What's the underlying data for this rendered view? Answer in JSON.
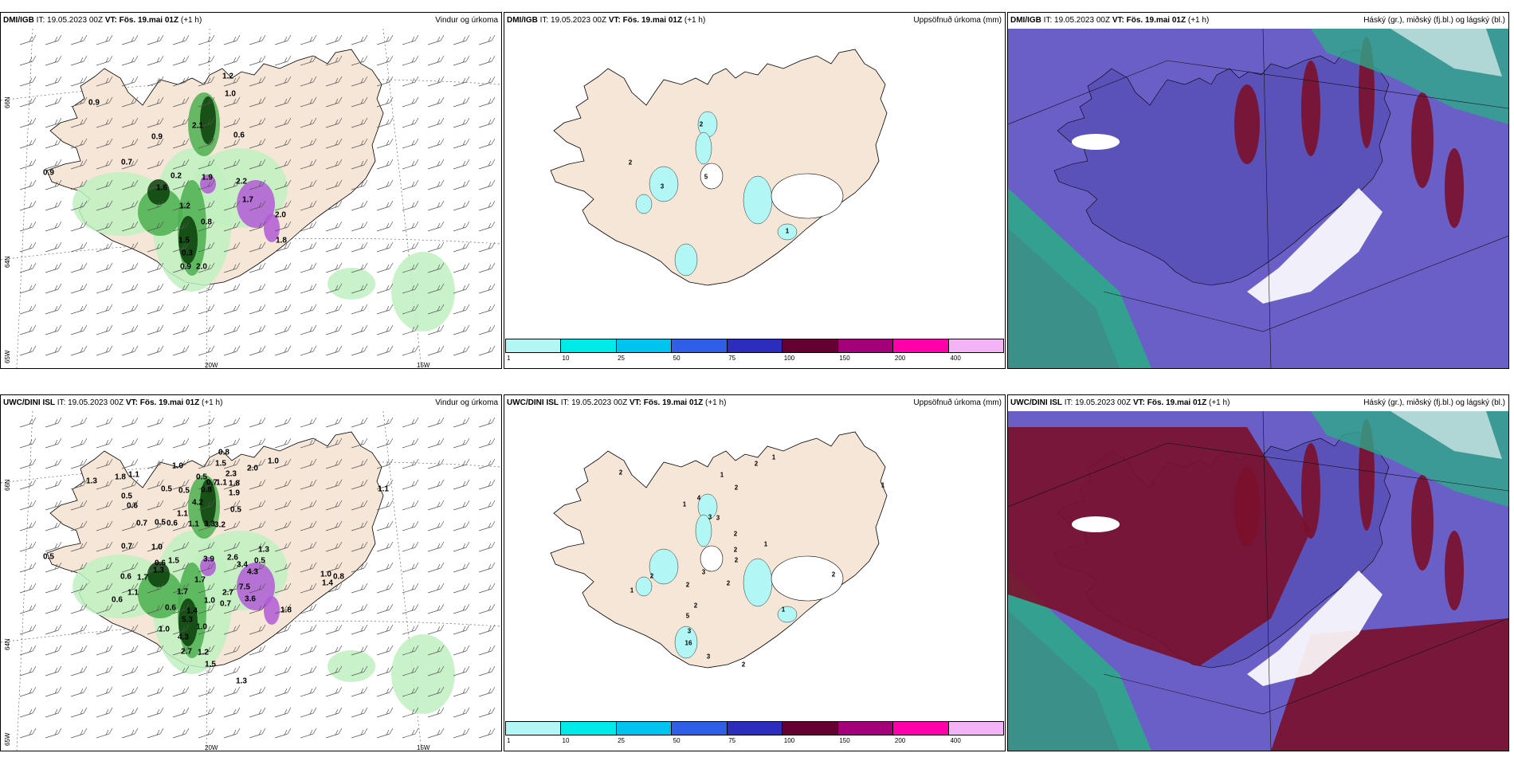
{
  "rows": [
    {
      "model": "DMI/IGB",
      "panels": [
        {
          "type": "wind_precip",
          "left_parts": {
            "model": "DMI/IGB",
            "it": " IT: 19.05.2023 00Z ",
            "vt": "VT: Fös. 19.mai 01Z",
            "lead": " (+1 h)"
          },
          "right_title": "Vindur og úrkoma",
          "lat_labels": [
            "66N",
            "64N",
            "65W"
          ],
          "lon_labels": [
            "20W",
            "15W"
          ],
          "values": [
            {
              "t": "1.2",
              "x": 285,
              "y": 60
            },
            {
              "t": "1.0",
              "x": 288,
              "y": 82
            },
            {
              "t": "0.9",
              "x": 117,
              "y": 93
            },
            {
              "t": "2.1",
              "x": 247,
              "y": 122
            },
            {
              "t": "0.9",
              "x": 196,
              "y": 136
            },
            {
              "t": "0.6",
              "x": 299,
              "y": 134
            },
            {
              "t": "0.7",
              "x": 158,
              "y": 168
            },
            {
              "t": "0.9",
              "x": 60,
              "y": 181
            },
            {
              "t": "0.2",
              "x": 220,
              "y": 185
            },
            {
              "t": "1.9",
              "x": 259,
              "y": 187
            },
            {
              "t": "1.6",
              "x": 202,
              "y": 200
            },
            {
              "t": "2.2",
              "x": 302,
              "y": 192
            },
            {
              "t": "1.7",
              "x": 310,
              "y": 215
            },
            {
              "t": "1.2",
              "x": 231,
              "y": 223
            },
            {
              "t": "0.8",
              "x": 258,
              "y": 243
            },
            {
              "t": "2.0",
              "x": 351,
              "y": 234
            },
            {
              "t": "1.8",
              "x": 352,
              "y": 266
            },
            {
              "t": "1.5",
              "x": 230,
              "y": 266
            },
            {
              "t": "0.3",
              "x": 234,
              "y": 282
            },
            {
              "t": "0.9",
              "x": 232,
              "y": 299
            },
            {
              "t": "2.0",
              "x": 252,
              "y": 299
            }
          ],
          "white_values": [
            "1.6",
            "1.9",
            "1.7",
            "0.9",
            "2.0"
          ]
        },
        {
          "type": "accum_precip",
          "left_parts": {
            "model": "DMI/IGB",
            "it": " IT: 19.05.2023 00Z ",
            "vt": "VT: Fös. 19.mai 01Z",
            "lead": " (+1 h)"
          },
          "right_title": "Uppsöfnuð úrkoma (mm)",
          "values": [
            {
              "t": "2",
              "x": 247,
              "y": 120
            },
            {
              "t": "2",
              "x": 158,
              "y": 168
            },
            {
              "t": "5",
              "x": 253,
              "y": 186
            },
            {
              "t": "3",
              "x": 198,
              "y": 198
            },
            {
              "t": "1",
              "x": 355,
              "y": 254
            }
          ]
        },
        {
          "type": "cloud",
          "left_parts": {
            "model": "DMI/IGB",
            "it": " IT: 19.05.2023 00Z ",
            "vt": "VT: Fös. 19.mai 01Z",
            "lead": " (+1 h)"
          },
          "right_title": "Háský (gr.), miðský (fj.bl.) og lágský (bl.)"
        }
      ]
    },
    {
      "model": "UWC/DINI ISL",
      "panels": [
        {
          "type": "wind_precip",
          "left_parts": {
            "model": "UWC/DINI ISL",
            "it": " IT: 19.05.2023 00Z ",
            "vt": "VT: Fös. 19.mai 01Z",
            "lead": " (+1 h)"
          },
          "right_title": "Vindur og úrkoma",
          "lat_labels": [
            "66N",
            "64N",
            "65W"
          ],
          "lon_labels": [
            "20W",
            "15W"
          ],
          "values": [
            {
              "t": "0.8",
              "x": 280,
              "y": 52
            },
            {
              "t": "1.0",
              "x": 342,
              "y": 63
            },
            {
              "t": "1.5",
              "x": 276,
              "y": 66
            },
            {
              "t": "2.0",
              "x": 316,
              "y": 72
            },
            {
              "t": "1.0",
              "x": 222,
              "y": 69
            },
            {
              "t": "1.1",
              "x": 167,
              "y": 80
            },
            {
              "t": "1.8",
              "x": 150,
              "y": 83
            },
            {
              "t": "2.3",
              "x": 289,
              "y": 79
            },
            {
              "t": "0.5",
              "x": 252,
              "y": 83
            },
            {
              "t": "0.7",
              "x": 265,
              "y": 90
            },
            {
              "t": "1.1",
              "x": 277,
              "y": 90
            },
            {
              "t": "1.3",
              "x": 114,
              "y": 88
            },
            {
              "t": "1.8",
              "x": 293,
              "y": 91
            },
            {
              "t": "0.5",
              "x": 208,
              "y": 98
            },
            {
              "t": "0.5",
              "x": 230,
              "y": 100
            },
            {
              "t": "0.8",
              "x": 258,
              "y": 99
            },
            {
              "t": "1.9",
              "x": 293,
              "y": 103
            },
            {
              "t": "1.1",
              "x": 480,
              "y": 98
            },
            {
              "t": "0.5",
              "x": 158,
              "y": 107
            },
            {
              "t": "0.6",
              "x": 165,
              "y": 119
            },
            {
              "t": "4.2",
              "x": 247,
              "y": 115
            },
            {
              "t": "1.1",
              "x": 228,
              "y": 129
            },
            {
              "t": "0.5",
              "x": 295,
              "y": 124
            },
            {
              "t": "0.7",
              "x": 177,
              "y": 141
            },
            {
              "t": "0.5",
              "x": 200,
              "y": 140
            },
            {
              "t": "0.6",
              "x": 215,
              "y": 141
            },
            {
              "t": "1.1",
              "x": 242,
              "y": 142
            },
            {
              "t": "3.3",
              "x": 262,
              "y": 142
            },
            {
              "t": "3.2",
              "x": 275,
              "y": 143
            },
            {
              "t": "0.7",
              "x": 158,
              "y": 170
            },
            {
              "t": "1.0",
              "x": 196,
              "y": 171
            },
            {
              "t": "1.3",
              "x": 330,
              "y": 174
            },
            {
              "t": "0.5",
              "x": 60,
              "y": 183
            },
            {
              "t": "3.9",
              "x": 261,
              "y": 186
            },
            {
              "t": "0.6",
              "x": 200,
              "y": 191
            },
            {
              "t": "1.5",
              "x": 217,
              "y": 188
            },
            {
              "t": "2.6",
              "x": 291,
              "y": 184
            },
            {
              "t": "0.5",
              "x": 325,
              "y": 188
            },
            {
              "t": "1.3",
              "x": 198,
              "y": 200
            },
            {
              "t": "3.4",
              "x": 303,
              "y": 193
            },
            {
              "t": "4.3",
              "x": 316,
              "y": 202
            },
            {
              "t": "1.0",
              "x": 408,
              "y": 205
            },
            {
              "t": "0.8",
              "x": 424,
              "y": 208
            },
            {
              "t": "0.6",
              "x": 157,
              "y": 208
            },
            {
              "t": "1.7",
              "x": 178,
              "y": 209
            },
            {
              "t": "1.7",
              "x": 250,
              "y": 212
            },
            {
              "t": "1.4",
              "x": 410,
              "y": 216
            },
            {
              "t": "7.5",
              "x": 306,
              "y": 221
            },
            {
              "t": "1.1",
              "x": 166,
              "y": 228
            },
            {
              "t": "1.7",
              "x": 228,
              "y": 227
            },
            {
              "t": "2.7",
              "x": 285,
              "y": 228
            },
            {
              "t": "3.6",
              "x": 313,
              "y": 236
            },
            {
              "t": "0.6",
              "x": 146,
              "y": 237
            },
            {
              "t": "1.0",
              "x": 262,
              "y": 238
            },
            {
              "t": "0.7",
              "x": 282,
              "y": 242
            },
            {
              "t": "0.6",
              "x": 213,
              "y": 247
            },
            {
              "t": "1.4",
              "x": 240,
              "y": 251
            },
            {
              "t": "1.8",
              "x": 358,
              "y": 250
            },
            {
              "t": "5.3",
              "x": 234,
              "y": 262
            },
            {
              "t": "1.0",
              "x": 205,
              "y": 274
            },
            {
              "t": "1.0",
              "x": 252,
              "y": 271
            },
            {
              "t": "4.3",
              "x": 229,
              "y": 284
            },
            {
              "t": "2.7",
              "x": 233,
              "y": 302
            },
            {
              "t": "1.2",
              "x": 254,
              "y": 303
            },
            {
              "t": "1.5",
              "x": 263,
              "y": 318
            },
            {
              "t": "1.3",
              "x": 302,
              "y": 339
            }
          ],
          "white_values": [
            "3.9",
            "4.3",
            "7.5",
            "3.6",
            "2.7",
            "1.2",
            "1.8",
            "5.3"
          ]
        },
        {
          "type": "accum_precip",
          "left_parts": {
            "model": "UWC/DINI ISL",
            "it": " IT: 19.05.2023 00Z ",
            "vt": "VT: Fös. 19.mai 01Z",
            "lead": " (+1 h)"
          },
          "right_title": "Uppsöfnuð úrkoma (mm)",
          "values": [
            {
              "t": "1",
              "x": 338,
              "y": 58
            },
            {
              "t": "2",
              "x": 316,
              "y": 66
            },
            {
              "t": "2",
              "x": 146,
              "y": 77
            },
            {
              "t": "1",
              "x": 273,
              "y": 80
            },
            {
              "t": "2",
              "x": 291,
              "y": 96
            },
            {
              "t": "1",
              "x": 475,
              "y": 93
            },
            {
              "t": "4",
              "x": 244,
              "y": 109
            },
            {
              "t": "1",
              "x": 226,
              "y": 117
            },
            {
              "t": "3",
              "x": 258,
              "y": 133
            },
            {
              "t": "3",
              "x": 268,
              "y": 134
            },
            {
              "t": "2",
              "x": 290,
              "y": 154
            },
            {
              "t": "1",
              "x": 328,
              "y": 167
            },
            {
              "t": "2",
              "x": 290,
              "y": 174
            },
            {
              "t": "2",
              "x": 291,
              "y": 187
            },
            {
              "t": "3",
              "x": 250,
              "y": 202
            },
            {
              "t": "2",
              "x": 281,
              "y": 216
            },
            {
              "t": "2",
              "x": 230,
              "y": 218
            },
            {
              "t": "2",
              "x": 413,
              "y": 205
            },
            {
              "t": "2",
              "x": 185,
              "y": 207
            },
            {
              "t": "1",
              "x": 160,
              "y": 225
            },
            {
              "t": "2",
              "x": 240,
              "y": 244
            },
            {
              "t": "5",
              "x": 230,
              "y": 257
            },
            {
              "t": "1",
              "x": 350,
              "y": 249
            },
            {
              "t": "3",
              "x": 232,
              "y": 276
            },
            {
              "t": "16",
              "x": 231,
              "y": 291
            },
            {
              "t": "3",
              "x": 256,
              "y": 308
            },
            {
              "t": "2",
              "x": 300,
              "y": 318
            }
          ]
        },
        {
          "type": "cloud",
          "left_parts": {
            "model": "UWC/DINI ISL",
            "it": " IT: 19.05.2023 00Z ",
            "vt": "VT: Fös. 19.mai 01Z",
            "lead": " (+1 h)"
          },
          "right_title": "Háský (gr.), miðský (fj.bl.) og lágský (bl.)"
        }
      ]
    }
  ],
  "colorbar": {
    "colors": [
      "#b3f6f6",
      "#00eaea",
      "#00c3f0",
      "#2f5fe6",
      "#2c2cbd",
      "#660033",
      "#a3007a",
      "#ff00aa",
      "#f4b3f4"
    ],
    "ticks": [
      "1",
      "10",
      "25",
      "50",
      "75",
      "100",
      "150",
      "200",
      "400"
    ]
  },
  "colors": {
    "land": "#f5e6d7",
    "ocean": "#ffffff",
    "precip_light": "#c1f0c1",
    "precip_mid": "#4caf50",
    "precip_dark": "#0b3d0b",
    "precip_heavy": "#b25bd6",
    "accum_light": "#b3f6f6",
    "cloud_high_ocean": "#6a5fc7",
    "cloud_low": "#7a0f2a",
    "cloud_mid": "#2fa88a"
  }
}
